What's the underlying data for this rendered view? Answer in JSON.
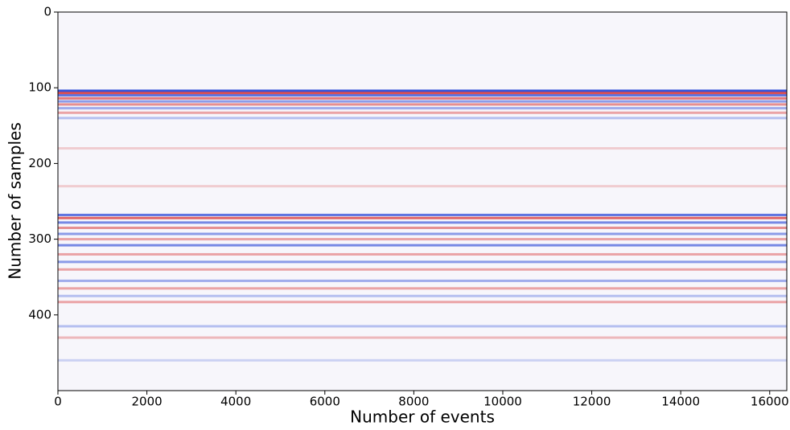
{
  "chart_data": {
    "type": "heatmap",
    "xlabel": "Number of events",
    "ylabel": "Number of samples",
    "xlim": [
      0,
      16384
    ],
    "ylim": [
      0,
      500
    ],
    "y_inverted": true,
    "xticks": [
      0,
      2000,
      4000,
      6000,
      8000,
      10000,
      12000,
      14000,
      16000
    ],
    "yticks": [
      0,
      100,
      200,
      300,
      400
    ],
    "positive_color": "#d62728",
    "negative_color": "#1f3fd6",
    "rows": [
      104,
      107,
      110,
      114,
      118,
      122,
      127,
      133,
      140,
      180,
      230,
      268,
      272,
      278,
      285,
      293,
      300,
      308,
      320,
      330,
      340,
      355,
      365,
      375,
      383,
      415,
      430,
      460
    ],
    "amplitudes": [
      -0.9,
      0.8,
      -0.7,
      0.6,
      -0.5,
      0.5,
      -0.4,
      0.4,
      -0.3,
      0.2,
      0.2,
      -0.7,
      0.7,
      -0.6,
      0.5,
      -0.5,
      0.4,
      -0.6,
      0.4,
      -0.5,
      0.4,
      -0.4,
      0.4,
      -0.3,
      0.4,
      -0.3,
      0.3,
      -0.2
    ]
  }
}
